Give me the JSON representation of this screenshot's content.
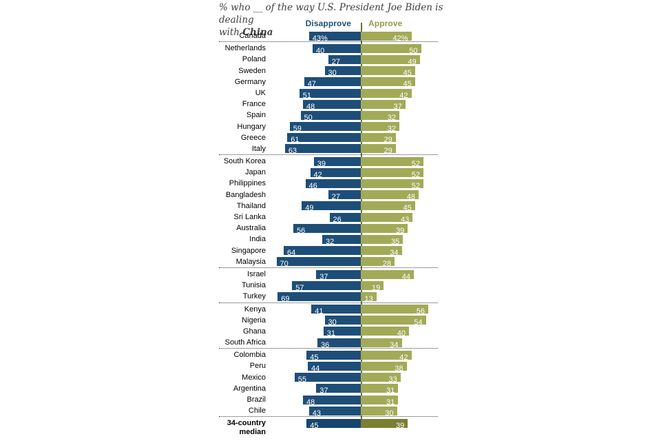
{
  "title": {
    "line1": "% who __ of the way U.S. President Joe Biden is dealing",
    "line2_regular": "with ",
    "line2_bold": "China"
  },
  "legend": {
    "disapprove_label": "Disapprove",
    "approve_label": "Approve"
  },
  "colors": {
    "disapprove": "#1e4e78",
    "approve": "#a2aa58",
    "disapprove_median": "#16466d",
    "approve_median": "#7b7f33",
    "axis_line": "#6e722d",
    "header_disapprove": "#1e4e78",
    "header_approve": "#939b47",
    "title_text": "#404040"
  },
  "chart_data": {
    "type": "bar",
    "orientation": "diverging-horizontal",
    "title": "% who __ of the way U.S. President Joe Biden is dealing with China",
    "series_names": [
      "Disapprove",
      "Approve"
    ],
    "legend_position": "top",
    "value_range": [
      0,
      70
    ],
    "grid": false,
    "groups": [
      {
        "region": "north-america",
        "rows": [
          {
            "label": "Canada",
            "disapprove": 43,
            "approve": 42,
            "show_percent": true
          }
        ]
      },
      {
        "region": "europe",
        "rows": [
          {
            "label": "Netherlands",
            "disapprove": 40,
            "approve": 50
          },
          {
            "label": "Poland",
            "disapprove": 27,
            "approve": 49
          },
          {
            "label": "Sweden",
            "disapprove": 30,
            "approve": 45
          },
          {
            "label": "Germany",
            "disapprove": 47,
            "approve": 45
          },
          {
            "label": "UK",
            "disapprove": 51,
            "approve": 42
          },
          {
            "label": "France",
            "disapprove": 48,
            "approve": 37
          },
          {
            "label": "Spain",
            "disapprove": 50,
            "approve": 32
          },
          {
            "label": "Hungary",
            "disapprove": 59,
            "approve": 32
          },
          {
            "label": "Greece",
            "disapprove": 61,
            "approve": 29
          },
          {
            "label": "Italy",
            "disapprove": 63,
            "approve": 29
          }
        ]
      },
      {
        "region": "asia-pacific",
        "rows": [
          {
            "label": "South Korea",
            "disapprove": 39,
            "approve": 52
          },
          {
            "label": "Japan",
            "disapprove": 42,
            "approve": 52
          },
          {
            "label": "Philippines",
            "disapprove": 46,
            "approve": 52
          },
          {
            "label": "Bangladesh",
            "disapprove": 27,
            "approve": 48
          },
          {
            "label": "Thailand",
            "disapprove": 49,
            "approve": 45
          },
          {
            "label": "Sri Lanka",
            "disapprove": 26,
            "approve": 43
          },
          {
            "label": "Australia",
            "disapprove": 56,
            "approve": 39
          },
          {
            "label": "India",
            "disapprove": 32,
            "approve": 35
          },
          {
            "label": "Singapore",
            "disapprove": 64,
            "approve": 34
          },
          {
            "label": "Malaysia",
            "disapprove": 70,
            "approve": 28
          }
        ]
      },
      {
        "region": "middle-east",
        "rows": [
          {
            "label": "Israel",
            "disapprove": 37,
            "approve": 44
          },
          {
            "label": "Tunisia",
            "disapprove": 57,
            "approve": 19
          },
          {
            "label": "Turkey",
            "disapprove": 69,
            "approve": 13
          }
        ]
      },
      {
        "region": "africa",
        "rows": [
          {
            "label": "Kenya",
            "disapprove": 41,
            "approve": 56
          },
          {
            "label": "Nigeria",
            "disapprove": 30,
            "approve": 54
          },
          {
            "label": "Ghana",
            "disapprove": 31,
            "approve": 40
          },
          {
            "label": "South Africa",
            "disapprove": 36,
            "approve": 34
          }
        ]
      },
      {
        "region": "latin-america",
        "rows": [
          {
            "label": "Colombia",
            "disapprove": 45,
            "approve": 42
          },
          {
            "label": "Peru",
            "disapprove": 44,
            "approve": 38
          },
          {
            "label": "Mexico",
            "disapprove": 55,
            "approve": 33
          },
          {
            "label": "Argentina",
            "disapprove": 37,
            "approve": 31
          },
          {
            "label": "Brazil",
            "disapprove": 48,
            "approve": 31
          },
          {
            "label": "Chile",
            "disapprove": 43,
            "approve": 30
          }
        ]
      },
      {
        "region": "summary",
        "rows": [
          {
            "label": "34-country median",
            "disapprove": 45,
            "approve": 39,
            "emphasis": true
          }
        ]
      }
    ]
  }
}
